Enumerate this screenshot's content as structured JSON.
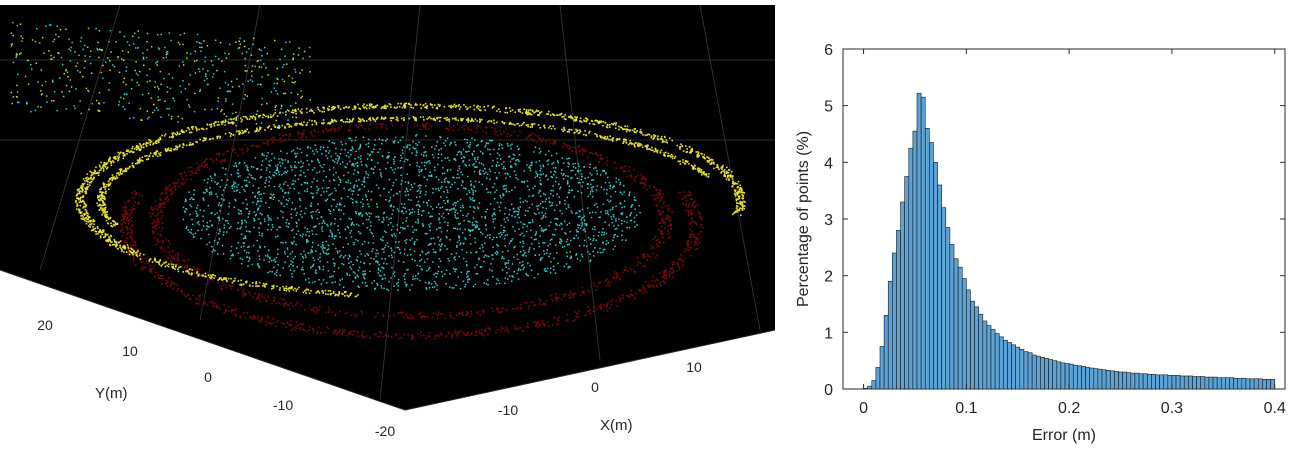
{
  "chart_data": [
    {
      "type": "scatter",
      "subtype": "3d-point-cloud",
      "xlabel": "X(m)",
      "ylabel": "Y(m)",
      "x_ticks": [
        -10,
        0,
        10
      ],
      "y_ticks": [
        -20,
        -10,
        0,
        10,
        20
      ],
      "background": "#000000",
      "grid": true,
      "point_colors": {
        "ground": "#3cc9c9",
        "mid": "#7a0a0a",
        "high": "#e8e03a",
        "far": "#c8d040"
      }
    },
    {
      "type": "bar",
      "subtype": "histogram",
      "xlabel": "Error (m)",
      "ylabel": "Percentage of points (%)",
      "xlim": [
        -0.02,
        0.41
      ],
      "ylim": [
        0,
        6
      ],
      "x_ticks": [
        0,
        0.1,
        0.2,
        0.3,
        0.4
      ],
      "x_tick_labels": [
        "0",
        "0.1",
        "0.2",
        "0.3",
        "0.4"
      ],
      "y_ticks": [
        0,
        1,
        2,
        3,
        4,
        5,
        6
      ],
      "y_tick_labels": [
        "0",
        "1",
        "2",
        "3",
        "4",
        "5",
        "6"
      ],
      "bin_width": 0.004,
      "bin_start": 0,
      "bar_color": "#5ba3d6",
      "values": [
        0.01,
        0.05,
        0.15,
        0.38,
        0.75,
        1.3,
        1.9,
        2.4,
        2.8,
        3.3,
        3.75,
        4.25,
        4.55,
        5.22,
        5.15,
        4.6,
        4.35,
        4.0,
        3.6,
        3.2,
        2.85,
        2.55,
        2.3,
        2.15,
        1.95,
        1.75,
        1.55,
        1.45,
        1.32,
        1.2,
        1.12,
        1.05,
        0.98,
        0.92,
        0.86,
        0.82,
        0.78,
        0.74,
        0.7,
        0.66,
        0.64,
        0.6,
        0.58,
        0.56,
        0.54,
        0.52,
        0.5,
        0.48,
        0.46,
        0.45,
        0.44,
        0.42,
        0.41,
        0.4,
        0.38,
        0.37,
        0.36,
        0.35,
        0.34,
        0.33,
        0.32,
        0.31,
        0.3,
        0.3,
        0.29,
        0.28,
        0.28,
        0.27,
        0.27,
        0.26,
        0.26,
        0.25,
        0.25,
        0.25,
        0.24,
        0.24,
        0.24,
        0.23,
        0.23,
        0.23,
        0.22,
        0.22,
        0.22,
        0.21,
        0.21,
        0.21,
        0.2,
        0.2,
        0.2,
        0.2,
        0.19,
        0.19,
        0.19,
        0.18,
        0.18,
        0.18,
        0.18,
        0.17,
        0.17,
        0.17
      ]
    }
  ]
}
